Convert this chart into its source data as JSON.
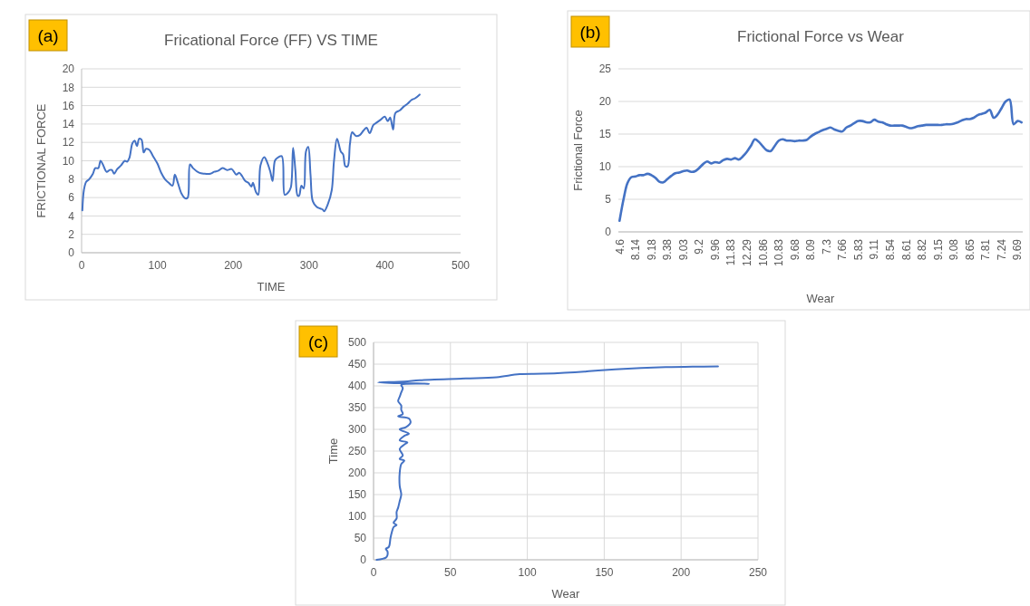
{
  "chart_data": [
    {
      "type": "line",
      "title": "Fricational Force (FF) VS TIME",
      "xlabel": "TIME",
      "ylabel": "FRICTIONAL FORCE",
      "annotations": [
        "(a)"
      ],
      "color": "#4472c4",
      "grid": "y",
      "xlim": [
        0,
        500
      ],
      "xticks": [
        0,
        100,
        200,
        300,
        400,
        500
      ],
      "ylim": [
        0,
        20
      ],
      "yticks": [
        0,
        2,
        4,
        6,
        8,
        10,
        12,
        14,
        16,
        18,
        20
      ],
      "x": [
        1,
        3,
        6,
        10,
        15,
        18,
        22,
        25,
        28,
        33,
        37,
        40,
        43,
        47,
        52,
        57,
        60,
        63,
        67,
        70,
        73,
        76,
        79,
        82,
        85,
        89,
        95,
        100,
        105,
        110,
        115,
        120,
        123,
        127,
        132,
        137,
        140,
        143,
        147,
        155,
        162,
        170,
        175,
        180,
        186,
        192,
        198,
        204,
        208,
        212,
        216,
        220,
        224,
        226,
        230,
        233,
        236,
        241,
        245,
        249,
        252,
        255,
        258,
        264,
        268,
        272,
        276,
        279,
        282,
        285,
        287,
        290,
        293,
        296,
        299,
        302,
        305,
        310,
        315,
        318,
        320,
        325,
        330,
        333,
        337,
        342,
        345,
        348,
        351,
        354,
        357,
        362,
        367,
        372,
        376,
        380,
        385,
        390,
        395,
        400,
        404,
        407,
        411,
        414,
        420,
        425,
        430,
        435,
        440,
        446
      ],
      "values": [
        4.6,
        6.8,
        7.7,
        8.0,
        8.6,
        9.2,
        9.2,
        10.0,
        9.6,
        8.8,
        9.0,
        9.0,
        8.6,
        9.1,
        9.5,
        10.0,
        9.9,
        10.3,
        11.9,
        12.2,
        11.6,
        12.4,
        12.3,
        10.9,
        11.3,
        11.2,
        10.4,
        9.7,
        8.7,
        8.0,
        7.6,
        7.3,
        8.5,
        7.6,
        6.4,
        5.9,
        6.0,
        9.6,
        9.2,
        8.7,
        8.6,
        8.6,
        8.8,
        8.9,
        9.2,
        9.0,
        9.1,
        8.5,
        8.7,
        8.3,
        7.8,
        7.6,
        7.2,
        7.6,
        6.6,
        6.3,
        9.5,
        10.4,
        9.8,
        8.8,
        7.8,
        10.0,
        10.3,
        10.5,
        6.3,
        6.5,
        7.1,
        11.4,
        9.0,
        6.2,
        6.2,
        7.3,
        7.0,
        11.0,
        11.5,
        8.5,
        5.6,
        5.0,
        4.8,
        4.7,
        4.5,
        5.3,
        6.8,
        10.0,
        12.4,
        11.0,
        10.7,
        9.4,
        9.4,
        11.8,
        13.1,
        12.7,
        12.8,
        13.3,
        13.6,
        13.0,
        13.9,
        14.2,
        14.5,
        14.8,
        14.3,
        14.7,
        13.4,
        15.2,
        15.5,
        15.9,
        16.2,
        16.6,
        16.8,
        17.2
      ]
    },
    {
      "type": "line",
      "title": "Frictional Force vs Wear",
      "xlabel": "Wear",
      "ylabel": "Frictional Force",
      "annotations": [
        "(b)"
      ],
      "color": "#4472c4",
      "grid": "y",
      "ylim": [
        0,
        25
      ],
      "yticks": [
        0,
        5,
        10,
        15,
        20,
        25
      ],
      "categories": [
        "4.6",
        null,
        null,
        null,
        "8.14",
        null,
        null,
        null,
        "9.18",
        null,
        null,
        null,
        "9.38",
        null,
        null,
        null,
        "9.03",
        null,
        null,
        null,
        "9.2",
        null,
        null,
        null,
        "9.96",
        null,
        null,
        null,
        "11.83",
        null,
        null,
        null,
        "12.29",
        null,
        null,
        null,
        "10.86",
        null,
        null,
        null,
        "10.83",
        null,
        null,
        null,
        "9.68",
        null,
        null,
        null,
        "8.09",
        null,
        null,
        null,
        "7.3",
        null,
        null,
        null,
        "7.66",
        null,
        null,
        null,
        "5.83",
        null,
        null,
        null,
        "9.11",
        null,
        null,
        null,
        "8.54",
        null,
        null,
        null,
        "8.61",
        null,
        null,
        null,
        "8.82",
        null,
        null,
        null,
        "9.15",
        null,
        null,
        null,
        "9.08",
        null,
        null,
        null,
        "8.65",
        null,
        null,
        null,
        "7.81",
        null,
        null,
        null,
        "7.24",
        null,
        null,
        null,
        "9.69",
        null
      ],
      "values": [
        1.7,
        5,
        7.5,
        8.4,
        8.5,
        8.7,
        8.7,
        8.9,
        8.7,
        8.3,
        7.7,
        7.6,
        8.1,
        8.6,
        9.0,
        9.1,
        9.3,
        9.4,
        9.2,
        9.3,
        9.8,
        10.4,
        10.8,
        10.5,
        10.7,
        10.6,
        11.0,
        11.2,
        11.1,
        11.3,
        11.1,
        11.6,
        12.3,
        13.2,
        14.2,
        13.8,
        13.1,
        12.5,
        12.4,
        13.2,
        14.0,
        14.2,
        14.0,
        14.0,
        13.9,
        14.0,
        14.0,
        14.1,
        14.6,
        15.0,
        15.3,
        15.6,
        15.8,
        16.0,
        15.7,
        15.5,
        15.4,
        16.0,
        16.3,
        16.7,
        17.0,
        17.0,
        16.8,
        16.8,
        17.2,
        16.9,
        16.8,
        16.5,
        16.3,
        16.3,
        16.3,
        16.3,
        16.1,
        15.9,
        16.0,
        16.2,
        16.3,
        16.4,
        16.4,
        16.4,
        16.4,
        16.4,
        16.5,
        16.5,
        16.6,
        16.8,
        17.1,
        17.3,
        17.3,
        17.5,
        17.9,
        18.1,
        18.3,
        18.7,
        17.5,
        18.0,
        19.0,
        20.0,
        20.3,
        16.5,
        17.0,
        16.8
      ]
    },
    {
      "type": "line",
      "xlabel": "Wear",
      "ylabel": "Time",
      "annotations": [
        "(c)"
      ],
      "color": "#4472c4",
      "grid": true,
      "xlim": [
        0,
        250
      ],
      "xticks": [
        0,
        50,
        100,
        150,
        200,
        250
      ],
      "ylim": [
        0,
        500
      ],
      "yticks": [
        0,
        50,
        100,
        150,
        200,
        250,
        300,
        350,
        400,
        450,
        500
      ],
      "x": [
        2,
        8,
        9,
        9,
        8,
        10,
        11,
        12,
        13,
        15,
        13,
        15,
        15,
        16,
        17,
        18,
        17,
        17,
        18,
        20,
        17,
        19,
        17,
        20,
        22,
        17,
        20,
        23,
        17,
        21,
        24,
        23,
        16,
        19,
        18,
        18,
        16,
        17,
        18,
        19,
        18,
        36,
        20,
        3,
        20,
        30,
        60,
        80,
        95,
        110,
        137,
        140,
        157,
        190,
        224
      ],
      "values": [
        0,
        5,
        10,
        20,
        25,
        30,
        50,
        65,
        75,
        80,
        85,
        95,
        110,
        120,
        135,
        150,
        170,
        200,
        220,
        228,
        232,
        240,
        255,
        265,
        270,
        275,
        285,
        290,
        300,
        305,
        315,
        325,
        330,
        335,
        345,
        355,
        365,
        375,
        385,
        395,
        402,
        405,
        406,
        408,
        410,
        413,
        417,
        420,
        427,
        428,
        433,
        434,
        438,
        443,
        445
      ]
    }
  ]
}
